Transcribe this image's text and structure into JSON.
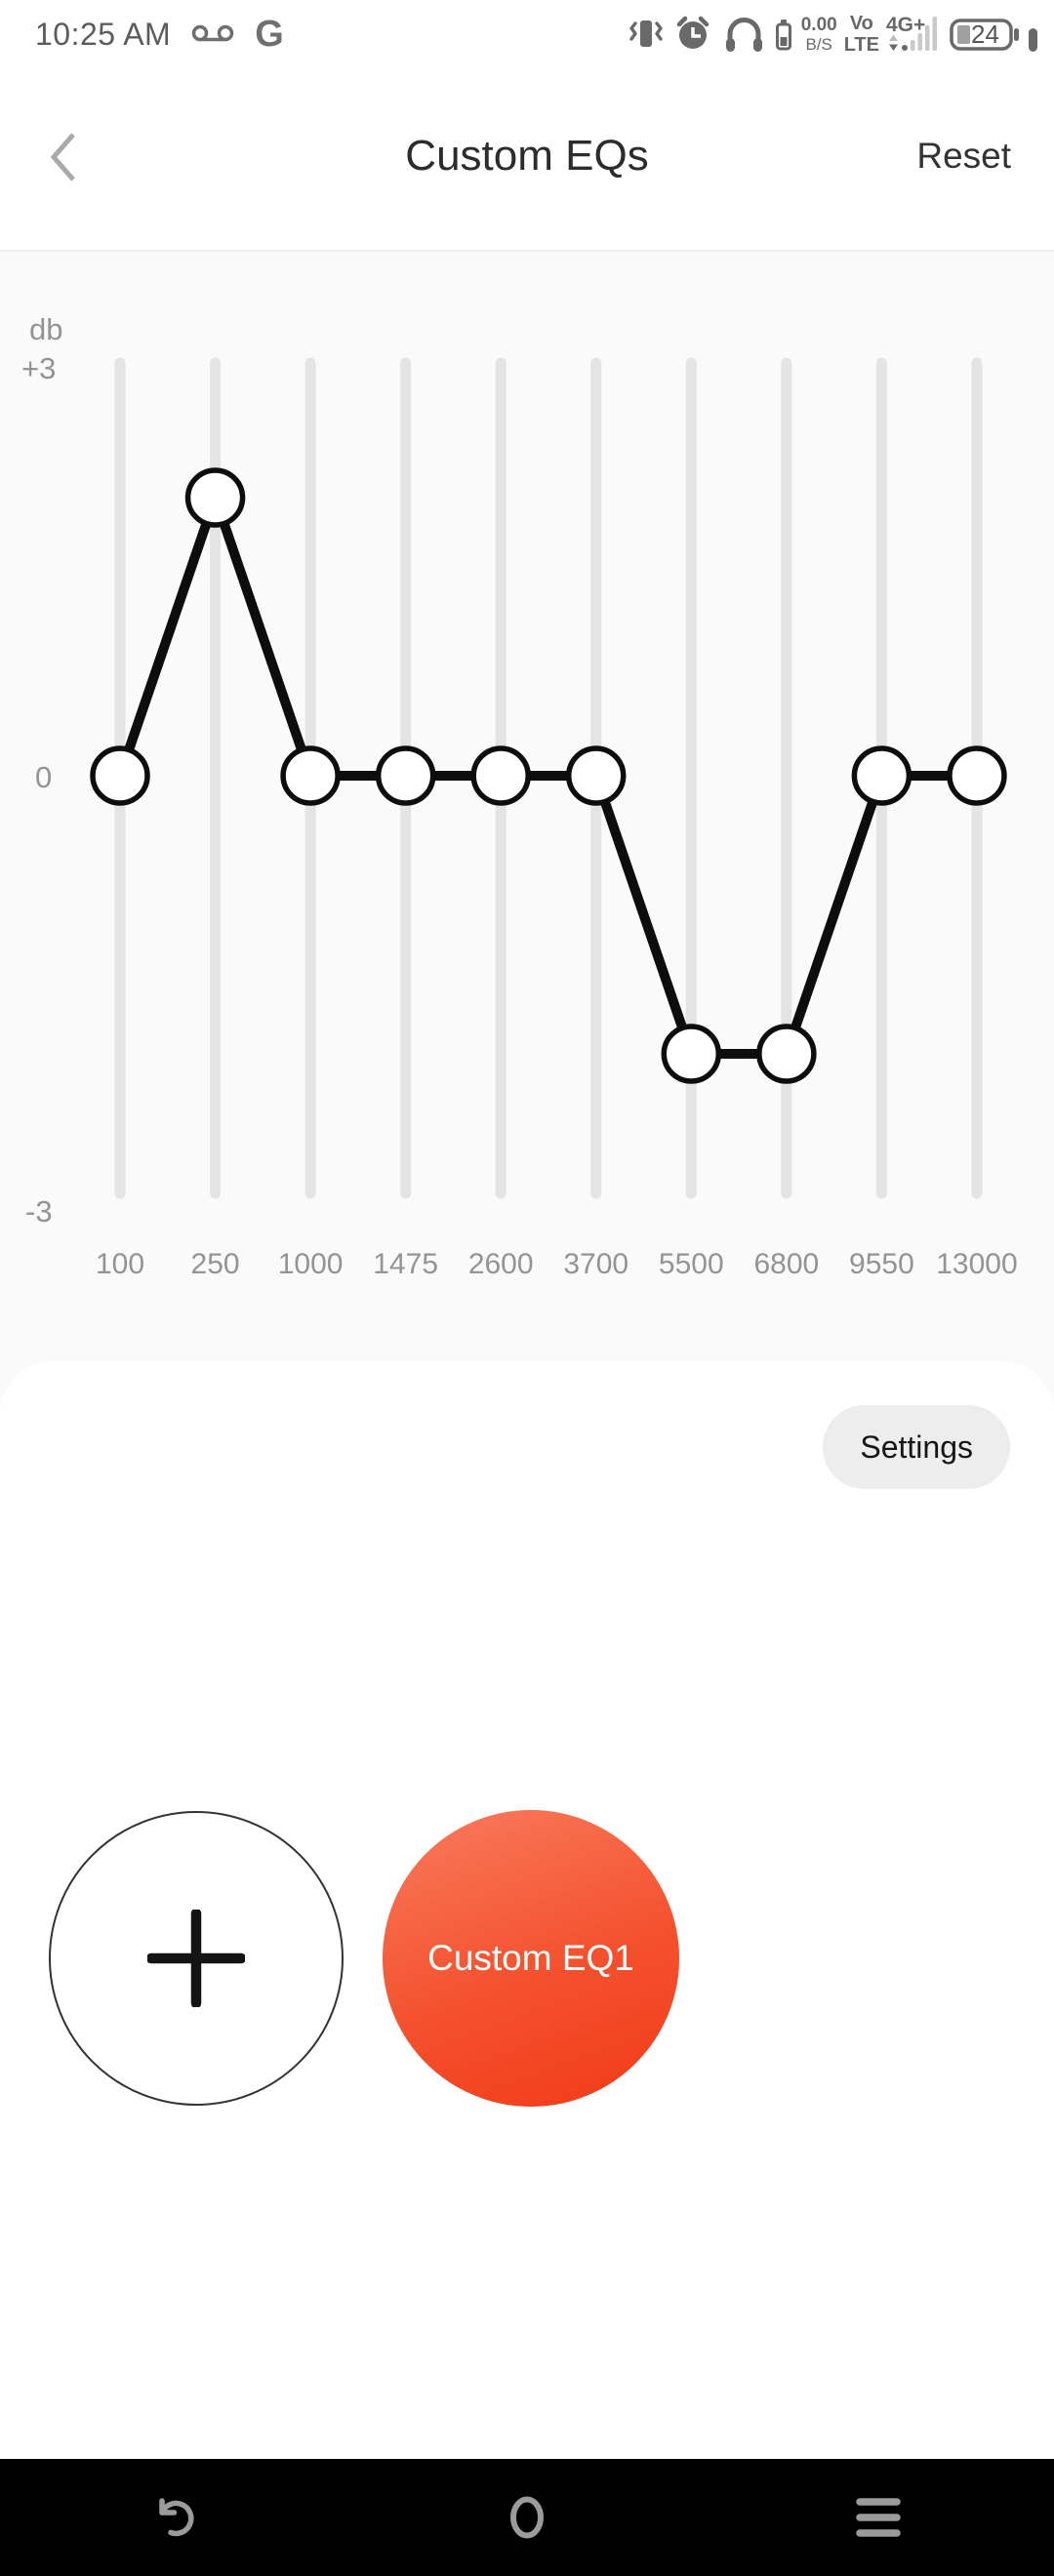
{
  "status_bar": {
    "time": "10:25 AM",
    "google_letter": "G",
    "net_speed_value": "0.00",
    "net_speed_unit": "B/S",
    "volte_line1": "Vo",
    "volte_line2": "LTE",
    "network_type": "4G+",
    "battery_percent": "24",
    "icons": [
      "voicemail-icon",
      "google-icon",
      "vibrate-icon",
      "alarm-icon",
      "headphones-icon",
      "headset-battery-icon",
      "signal-bars-icon",
      "battery-icon",
      "secondary-battery-icon"
    ]
  },
  "header": {
    "title": "Custom EQs",
    "reset_label": "Reset",
    "back_icon": "chevron-left-icon"
  },
  "chart_data": {
    "type": "line",
    "title": "",
    "xlabel": "",
    "ylabel": "db",
    "y_ticks": [
      "+3",
      "0",
      "-3"
    ],
    "ylim": [
      -3,
      3
    ],
    "categories": [
      "100",
      "250",
      "1000",
      "1475",
      "2600",
      "3700",
      "5500",
      "6800",
      "9550",
      "13000"
    ],
    "values": [
      0,
      2,
      0,
      0,
      0,
      0,
      -2,
      -2,
      0,
      0
    ],
    "grid": "vertical-slider-tracks",
    "legend": "none",
    "line_color": "#0d0d0d",
    "point_fill": "#ffffff",
    "track_color": "#e4e4e4",
    "axis_text_color": "#949494"
  },
  "card": {
    "settings_label": "Settings",
    "add_button_icon": "plus-icon",
    "presets": [
      {
        "label": "Custom EQ1",
        "color": "#f4471f"
      }
    ]
  },
  "nav_bar": {
    "icons": [
      "back-icon",
      "home-icon",
      "menu-icon"
    ]
  },
  "colors": {
    "accent_red": "#f4471f",
    "settings_pill": "#ededed",
    "nav_bar": "#000000",
    "chart_bg": "#fafafa",
    "card_bg": "#ffffff"
  }
}
